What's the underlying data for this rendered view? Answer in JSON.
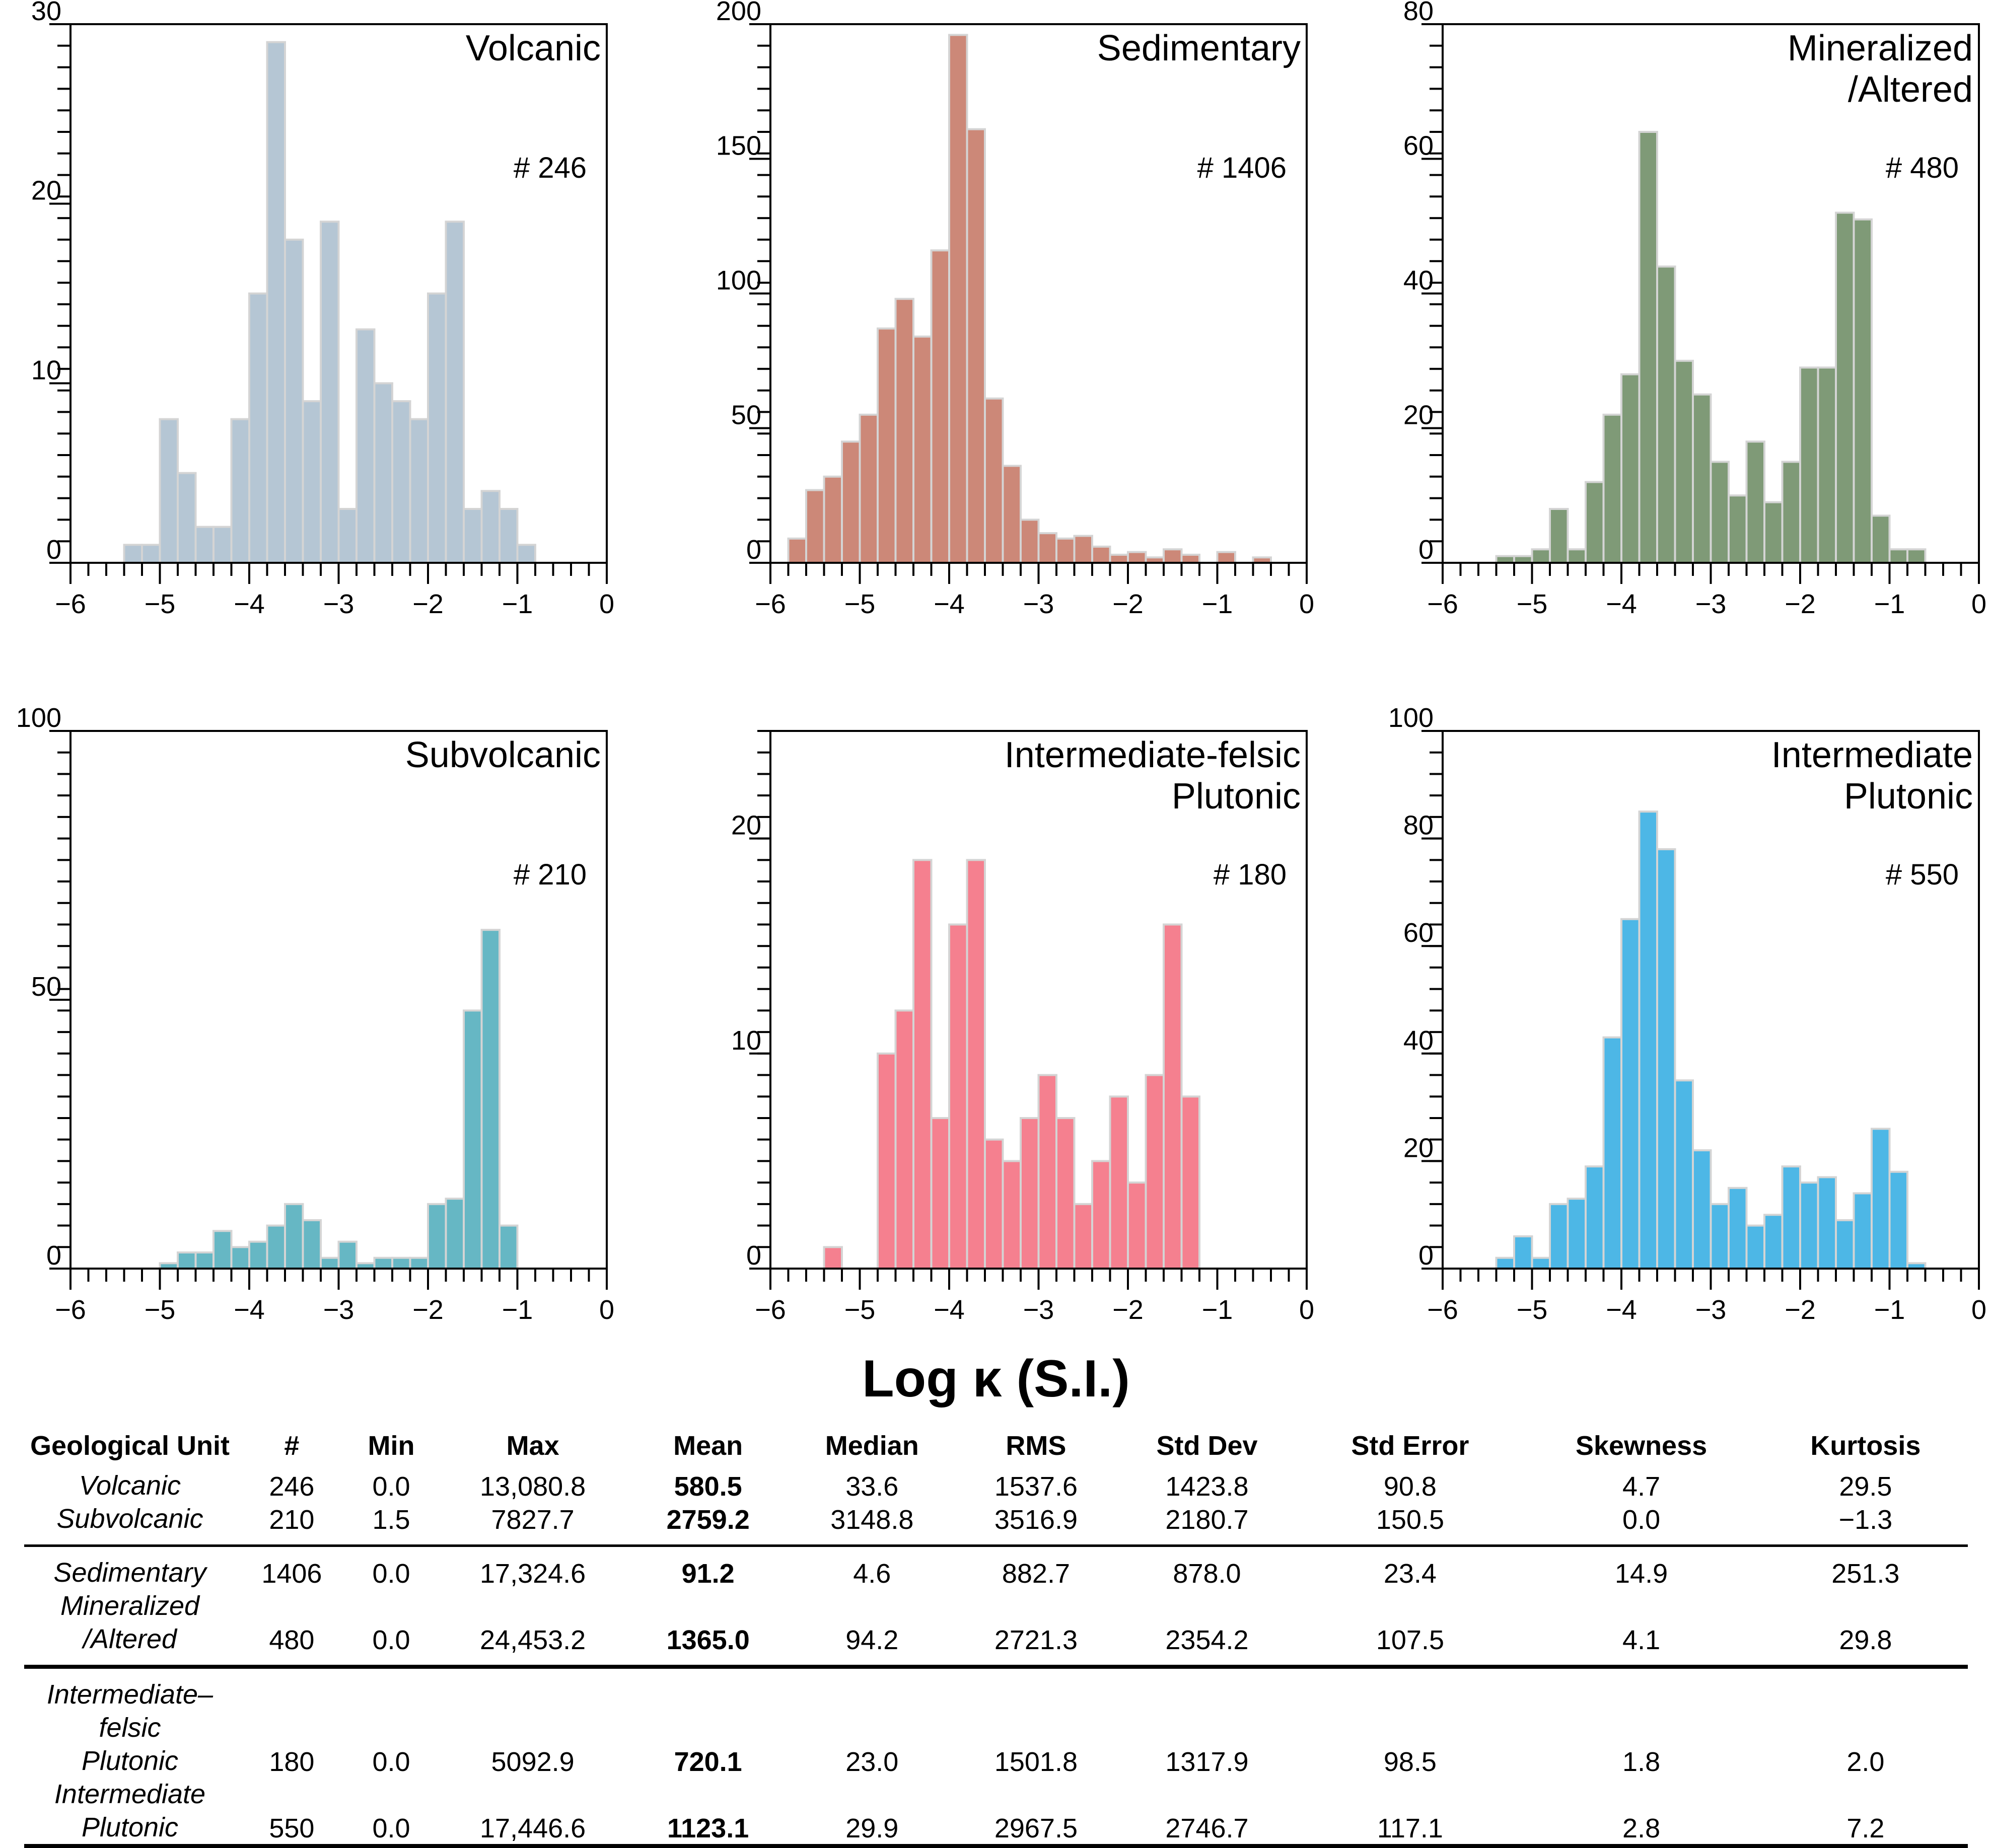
{
  "chart_data": [
    {
      "type": "bar",
      "title": "Volcanic",
      "count_label": "# 246",
      "xlim": [
        -6,
        0
      ],
      "ylim": [
        0,
        30
      ],
      "yticks": [
        0,
        10,
        20,
        30
      ],
      "xticks": [
        -6,
        -5,
        -4,
        -3,
        -2,
        -1,
        0
      ],
      "xtick_labels": [
        "−6",
        "−5",
        "−4",
        "−3",
        "−2",
        "−1",
        "0"
      ],
      "bin_width": 0.2,
      "bin_start": -5.4,
      "values": [
        1,
        1,
        8,
        5,
        2,
        2,
        8,
        15,
        29,
        18,
        9,
        19,
        3,
        13,
        10,
        9,
        8,
        15,
        19,
        3,
        4,
        3,
        1
      ],
      "color": "#b5c6d4"
    },
    {
      "type": "bar",
      "title": "Sedimentary",
      "count_label": "# 1406",
      "xlim": [
        -6,
        0
      ],
      "ylim": [
        0,
        200
      ],
      "yticks": [
        0,
        50,
        100,
        150,
        200
      ],
      "xticks": [
        -6,
        -5,
        -4,
        -3,
        -2,
        -1,
        0
      ],
      "xtick_labels": [
        "−6",
        "−5",
        "−4",
        "−3",
        "−2",
        "−1",
        "0"
      ],
      "bin_width": 0.2,
      "bin_start": -5.8,
      "values": [
        9,
        27,
        32,
        45,
        55,
        87,
        98,
        84,
        116,
        196,
        161,
        61,
        36,
        16,
        11,
        9,
        10,
        6,
        3,
        4,
        2,
        5,
        3,
        0,
        4,
        0,
        2
      ],
      "color": "#cc8878"
    },
    {
      "type": "bar",
      "title": "Mineralized /Altered",
      "count_label": "# 480",
      "xlim": [
        -6,
        0
      ],
      "ylim": [
        0,
        80
      ],
      "yticks": [
        0,
        20,
        40,
        60,
        80
      ],
      "xticks": [
        -6,
        -5,
        -4,
        -3,
        -2,
        -1,
        0
      ],
      "xtick_labels": [
        "−6",
        "−5",
        "−4",
        "−3",
        "−2",
        "−1",
        "0"
      ],
      "bin_width": 0.2,
      "bin_start": -5.4,
      "values": [
        1,
        1,
        2,
        8,
        2,
        12,
        22,
        28,
        64,
        44,
        30,
        25,
        15,
        10,
        18,
        9,
        15,
        29,
        29,
        52,
        51,
        7,
        2,
        2
      ],
      "color": "#7f9a77"
    },
    {
      "type": "bar",
      "title": "Subvolcanic",
      "count_label": "# 210",
      "xlim": [
        -6,
        0
      ],
      "ylim": [
        0,
        100
      ],
      "yticks": [
        0,
        50,
        100
      ],
      "xticks": [
        -6,
        -5,
        -4,
        -3,
        -2,
        -1,
        0
      ],
      "xtick_labels": [
        "−6",
        "−5",
        "−4",
        "−3",
        "−2",
        "−1",
        "0"
      ],
      "bin_width": 0.2,
      "bin_start": -5.0,
      "values": [
        1,
        3,
        3,
        7,
        4,
        5,
        8,
        12,
        9,
        2,
        5,
        1,
        2,
        2,
        2,
        12,
        13,
        48,
        63,
        8
      ],
      "color": "#66b7c4"
    },
    {
      "type": "bar",
      "title": "Intermediate-felsic Plutonic",
      "count_label": "# 180",
      "xlim": [
        -6,
        0
      ],
      "ylim": [
        0,
        25
      ],
      "yticks": [
        0,
        10,
        20
      ],
      "xticks": [
        -6,
        -5,
        -4,
        -3,
        -2,
        -1,
        0
      ],
      "xtick_labels": [
        "−6",
        "−5",
        "−4",
        "−3",
        "−2",
        "−1",
        "0"
      ],
      "bin_width": 0.2,
      "bin_start": -5.4,
      "values": [
        1,
        0,
        0,
        10,
        12,
        19,
        7,
        16,
        19,
        6,
        5,
        7,
        9,
        7,
        3,
        5,
        8,
        4,
        9,
        16,
        8
      ],
      "color": "#f5808f"
    },
    {
      "type": "bar",
      "title": "Intermediate Plutonic",
      "count_label": "# 550",
      "xlim": [
        -6,
        0
      ],
      "ylim": [
        0,
        100
      ],
      "yticks": [
        0,
        20,
        40,
        60,
        80,
        100
      ],
      "xticks": [
        -6,
        -5,
        -4,
        -3,
        -2,
        -1,
        0
      ],
      "xtick_labels": [
        "−6",
        "−5",
        "−4",
        "−3",
        "−2",
        "−1",
        "0"
      ],
      "bin_width": 0.2,
      "bin_start": -5.4,
      "values": [
        2,
        6,
        2,
        12,
        13,
        19,
        43,
        65,
        85,
        78,
        35,
        22,
        12,
        15,
        8,
        10,
        19,
        16,
        17,
        9,
        14,
        26,
        18,
        1
      ],
      "color": "#4db7e6"
    }
  ],
  "xaxis_title": "Log κ (S.I.)",
  "table": {
    "headers": [
      "Geological Unit",
      "#",
      "Min",
      "Max",
      "Mean",
      "Median",
      "RMS",
      "Std Dev",
      "Std Error",
      "Skewness",
      "Kurtosis"
    ],
    "rows": [
      {
        "unit": "Volcanic",
        "n": "246",
        "min": "0.0",
        "max": "13,080.8",
        "mean": "580.5",
        "median": "33.6",
        "rms": "1537.6",
        "std_dev": "1423.8",
        "std_error": "90.8",
        "skewness": "4.7",
        "kurtosis": "29.5"
      },
      {
        "unit": "Subvolcanic",
        "n": "210",
        "min": "1.5",
        "max": "7827.7",
        "mean": "2759.2",
        "median": "3148.8",
        "rms": "3516.9",
        "std_dev": "2180.7",
        "std_error": "150.5",
        "skewness": "0.0",
        "kurtosis": "−1.3"
      },
      {
        "unit": "Sedimentary",
        "n": "1406",
        "min": "0.0",
        "max": "17,324.6",
        "mean": "91.2",
        "median": "4.6",
        "rms": "882.7",
        "std_dev": "878.0",
        "std_error": "23.4",
        "skewness": "14.9",
        "kurtosis": "251.3"
      },
      {
        "unit_line1": "Mineralized",
        "unit_line2": "/Altered",
        "n": "480",
        "min": "0.0",
        "max": "24,453.2",
        "mean": "1365.0",
        "median": "94.2",
        "rms": "2721.3",
        "std_dev": "2354.2",
        "std_error": "107.5",
        "skewness": "4.1",
        "kurtosis": "29.8"
      },
      {
        "unit_line1": "Intermediate–felsic",
        "unit_line2": "Plutonic",
        "n": "180",
        "min": "0.0",
        "max": "5092.9",
        "mean": "720.1",
        "median": "23.0",
        "rms": "1501.8",
        "std_dev": "1317.9",
        "std_error": "98.5",
        "skewness": "1.8",
        "kurtosis": "2.0"
      },
      {
        "unit_line1": "Intermediate",
        "unit_line2": "Plutonic",
        "n": "550",
        "min": "0.0",
        "max": "17,446.6",
        "mean": "1123.1",
        "median": "29.9",
        "rms": "2967.5",
        "std_dev": "2746.7",
        "std_error": "117.1",
        "skewness": "2.8",
        "kurtosis": "7.2"
      }
    ]
  }
}
